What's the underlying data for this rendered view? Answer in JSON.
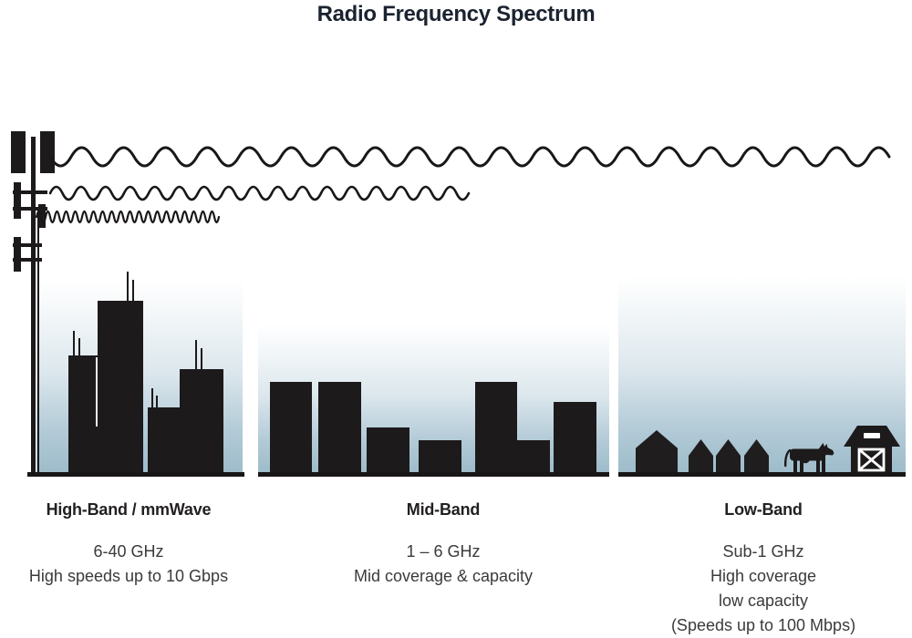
{
  "title": "Radio Frequency Spectrum",
  "bands": [
    {
      "id": "high-band",
      "label": "High-Band / mmWave",
      "lines": [
        "6-40 GHz",
        "High speeds up to 10 Gbps"
      ],
      "scene": "city-skyline",
      "wave": "short-wavelength"
    },
    {
      "id": "mid-band",
      "label": "Mid-Band",
      "lines": [
        "1 – 6 GHz",
        "Mid coverage & capacity"
      ],
      "scene": "town-buildings",
      "wave": "medium-wavelength"
    },
    {
      "id": "low-band",
      "label": "Low-Band",
      "lines": [
        "Sub-1 GHz",
        "High coverage",
        "low capacity",
        "(Speeds up to 100 Mbps)"
      ],
      "scene": "rural-houses-cow-barn",
      "wave": "long-wavelength"
    }
  ],
  "icons": [
    "cell-tower-icon",
    "long-wavelength-wave-icon",
    "medium-wavelength-wave-icon",
    "short-wavelength-wave-icon",
    "city-building-icon",
    "house-icon",
    "cow-icon",
    "barn-icon"
  ],
  "colors": {
    "silhouette": "#1d1a1b",
    "sky_bottom": "#9ebcca",
    "title_text": "#1b2330",
    "label_text": "#232021",
    "body_text": "#3c3a3a"
  }
}
